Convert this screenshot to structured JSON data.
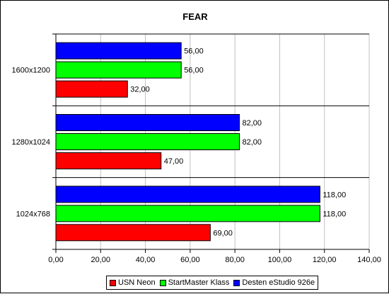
{
  "chart_data": {
    "type": "bar",
    "orientation": "horizontal",
    "title": "FEAR",
    "categories": [
      "1600x1200",
      "1280x1024",
      "1024x768"
    ],
    "series": [
      {
        "name": "Desten eStudio 926e",
        "color": "#0000ff",
        "values": [
          56,
          82,
          118
        ],
        "labels": [
          "56,00",
          "82,00",
          "118,00"
        ]
      },
      {
        "name": "StartMaster Klass",
        "color": "#00ff00",
        "values": [
          56,
          82,
          118
        ],
        "labels": [
          "56,00",
          "82,00",
          "118,00"
        ]
      },
      {
        "name": "USN Neon",
        "color": "#ff0000",
        "values": [
          32,
          47,
          69
        ],
        "labels": [
          "32,00",
          "47,00",
          "69,00"
        ]
      }
    ],
    "xlim": [
      0,
      140
    ],
    "ticks": [
      0,
      20,
      40,
      60,
      80,
      100,
      120,
      140
    ],
    "tick_labels": [
      "0,00",
      "20,00",
      "40,00",
      "60,00",
      "80,00",
      "100,00",
      "120,00",
      "140,00"
    ],
    "grid": true,
    "legend": {
      "position": "bottom",
      "entries": [
        {
          "name": "USN Neon",
          "color": "#ff0000"
        },
        {
          "name": "StartMaster Klass",
          "color": "#00ff00"
        },
        {
          "name": "Desten eStudio 926e",
          "color": "#0000ff"
        }
      ]
    }
  }
}
